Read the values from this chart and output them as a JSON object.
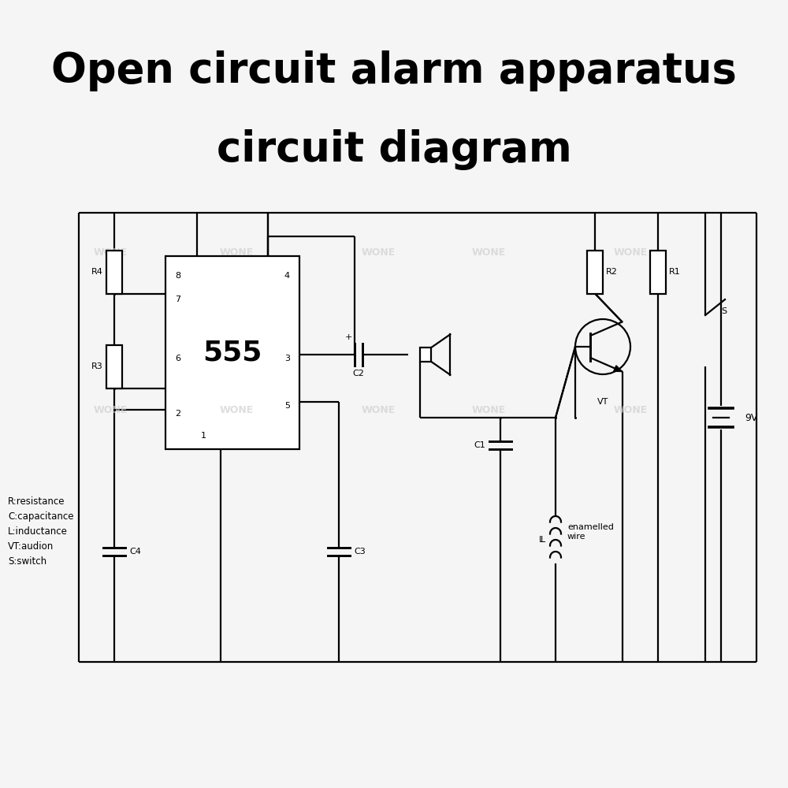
{
  "title_line1": "Open circuit alarm apparatus",
  "title_line2": "circuit diagram",
  "title_fontsize": 38,
  "title_fontweight": "bold",
  "bg_color": "#f5f5f5",
  "line_color": "#000000",
  "lw": 1.6,
  "watermark_text": "WONE",
  "watermark_color": "#d0d0d0",
  "legend_text": "R:resistance\nC:capacitance\nL:inductance\nVT:audion\nS:switch",
  "chip_label": "555",
  "voltage_label": "9V",
  "enamelled_label": "enamelled\nwire"
}
